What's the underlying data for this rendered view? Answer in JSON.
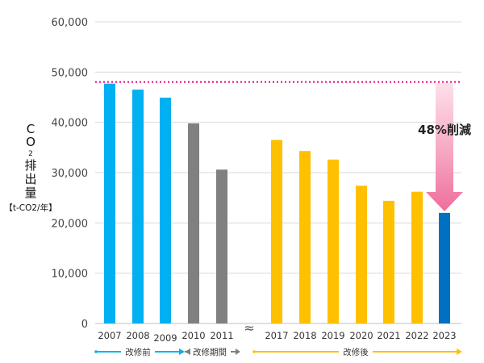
{
  "chart_data": {
    "type": "bar",
    "ylabel_lines": [
      "C",
      "O",
      "2",
      "排",
      "出",
      "量"
    ],
    "yunit": "【t-CO2/年】",
    "ylim": [
      0,
      60000
    ],
    "yticks": [
      0,
      10000,
      20000,
      30000,
      40000,
      50000,
      60000
    ],
    "ytick_labels": [
      "0",
      "10,000",
      "20,000",
      "30,000",
      "40,000",
      "50,000",
      "60,000"
    ],
    "grid": true,
    "categories": [
      "2007",
      "2008",
      "2009",
      "2010",
      "2011",
      "2017",
      "2018",
      "2019",
      "2020",
      "2021",
      "2022",
      "2023"
    ],
    "values": [
      47700,
      46500,
      44900,
      39800,
      30600,
      36500,
      34300,
      32600,
      27400,
      24400,
      26200,
      22000
    ],
    "bar_colors": [
      "#00b0f0",
      "#00b0f0",
      "#00b0f0",
      "#808080",
      "#808080",
      "#ffc000",
      "#ffc000",
      "#ffc000",
      "#ffc000",
      "#ffc000",
      "#ffc000",
      "#0070c0"
    ],
    "reference_line": {
      "value": 47700,
      "color": "#e6007e",
      "style": "dotted"
    },
    "annotation": "48%削減",
    "periods": [
      {
        "label": "改修前",
        "color": "#00b0f0"
      },
      {
        "label": "改修期間",
        "color": "#808080"
      },
      {
        "label": "改修後",
        "color": "#ffc000"
      }
    ],
    "axis_break_glyph": "≈"
  }
}
